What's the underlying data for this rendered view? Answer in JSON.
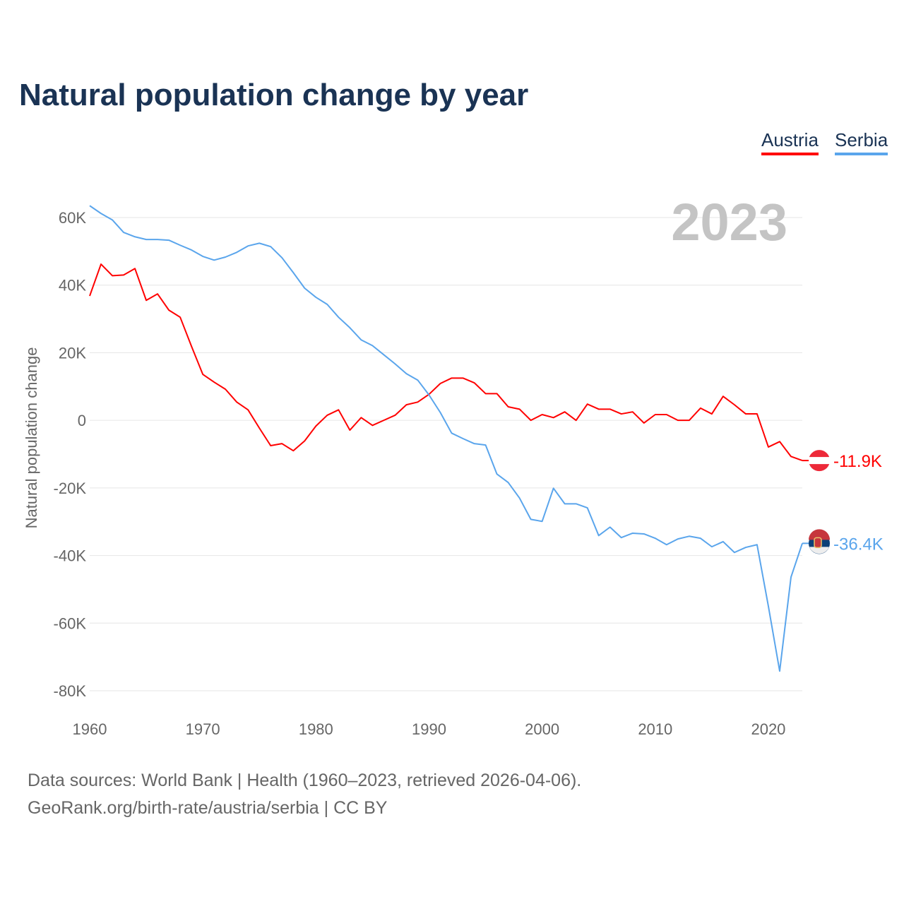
{
  "title": "Natural population change by year",
  "footer": {
    "line1": "Data sources: World Bank | Health (1960–2023, retrieved 2026-04-06).",
    "line2": "GeoRank.org/birth-rate/austria/serbia | CC BY"
  },
  "chart_data": {
    "type": "line",
    "title": "Natural population change by year",
    "xlabel": "",
    "ylabel": "Natural population change",
    "year_watermark": "2023",
    "xlim": [
      1960,
      2023
    ],
    "ylim": [
      -80000,
      60000
    ],
    "x_ticks": [
      1960,
      1970,
      1980,
      1990,
      2000,
      2010,
      2020
    ],
    "y_ticks": [
      {
        "v": 60000,
        "label": "60K"
      },
      {
        "v": 40000,
        "label": "40K"
      },
      {
        "v": 20000,
        "label": "20K"
      },
      {
        "v": 0,
        "label": "0"
      },
      {
        "v": -20000,
        "label": "-20K"
      },
      {
        "v": -40000,
        "label": "-40K"
      },
      {
        "v": -60000,
        "label": "-60K"
      },
      {
        "v": -80000,
        "label": "-80K"
      }
    ],
    "grid": true,
    "legend_placement": "top-right",
    "x": [
      1960,
      1961,
      1962,
      1963,
      1964,
      1965,
      1966,
      1967,
      1968,
      1969,
      1970,
      1971,
      1972,
      1973,
      1974,
      1975,
      1976,
      1977,
      1978,
      1979,
      1980,
      1981,
      1982,
      1983,
      1984,
      1985,
      1986,
      1987,
      1988,
      1989,
      1990,
      1991,
      1992,
      1993,
      1994,
      1995,
      1996,
      1997,
      1998,
      1999,
      2000,
      2001,
      2002,
      2003,
      2004,
      2005,
      2006,
      2007,
      2008,
      2009,
      2010,
      2011,
      2012,
      2013,
      2014,
      2015,
      2016,
      2017,
      2018,
      2019,
      2020,
      2021,
      2022,
      2023
    ],
    "series": [
      {
        "name": "Austria",
        "color": "#ff0000",
        "end_label": "-11.9K",
        "values": [
          36800,
          46200,
          42800,
          43000,
          44900,
          35500,
          37400,
          32600,
          30500,
          21900,
          13600,
          11300,
          9200,
          5400,
          3100,
          -2300,
          -7500,
          -6900,
          -9000,
          -6100,
          -1700,
          1500,
          3100,
          -2900,
          800,
          -1500,
          0,
          1500,
          4600,
          5400,
          7700,
          10900,
          12500,
          12500,
          11100,
          7900,
          7900,
          4000,
          3300,
          0,
          1700,
          800,
          2500,
          0,
          4800,
          3300,
          3300,
          1900,
          2500,
          -800,
          1700,
          1700,
          0,
          0,
          3600,
          1900,
          7100,
          4600,
          1900,
          1900,
          -7900,
          -6300,
          -10700,
          -11900
        ]
      },
      {
        "name": "Serbia",
        "color": "#5aa5ec",
        "end_label": "-36.4K",
        "values": [
          63500,
          61200,
          59300,
          55600,
          54300,
          53500,
          53500,
          53300,
          51800,
          50400,
          48500,
          47400,
          48300,
          49700,
          51600,
          52400,
          51400,
          48100,
          43700,
          39100,
          36400,
          34300,
          30500,
          27400,
          23800,
          22100,
          19400,
          16700,
          13800,
          11900,
          7500,
          2300,
          -3800,
          -5400,
          -6900,
          -7300,
          -15900,
          -18400,
          -23000,
          -29300,
          -29900,
          -20100,
          -24700,
          -24700,
          -25900,
          -34100,
          -31600,
          -34700,
          -33400,
          -33600,
          -34900,
          -36800,
          -35100,
          -34300,
          -34900,
          -37400,
          -35900,
          -39100,
          -37600,
          -36800,
          -55000,
          -74200,
          -46400,
          -36400
        ]
      }
    ]
  }
}
